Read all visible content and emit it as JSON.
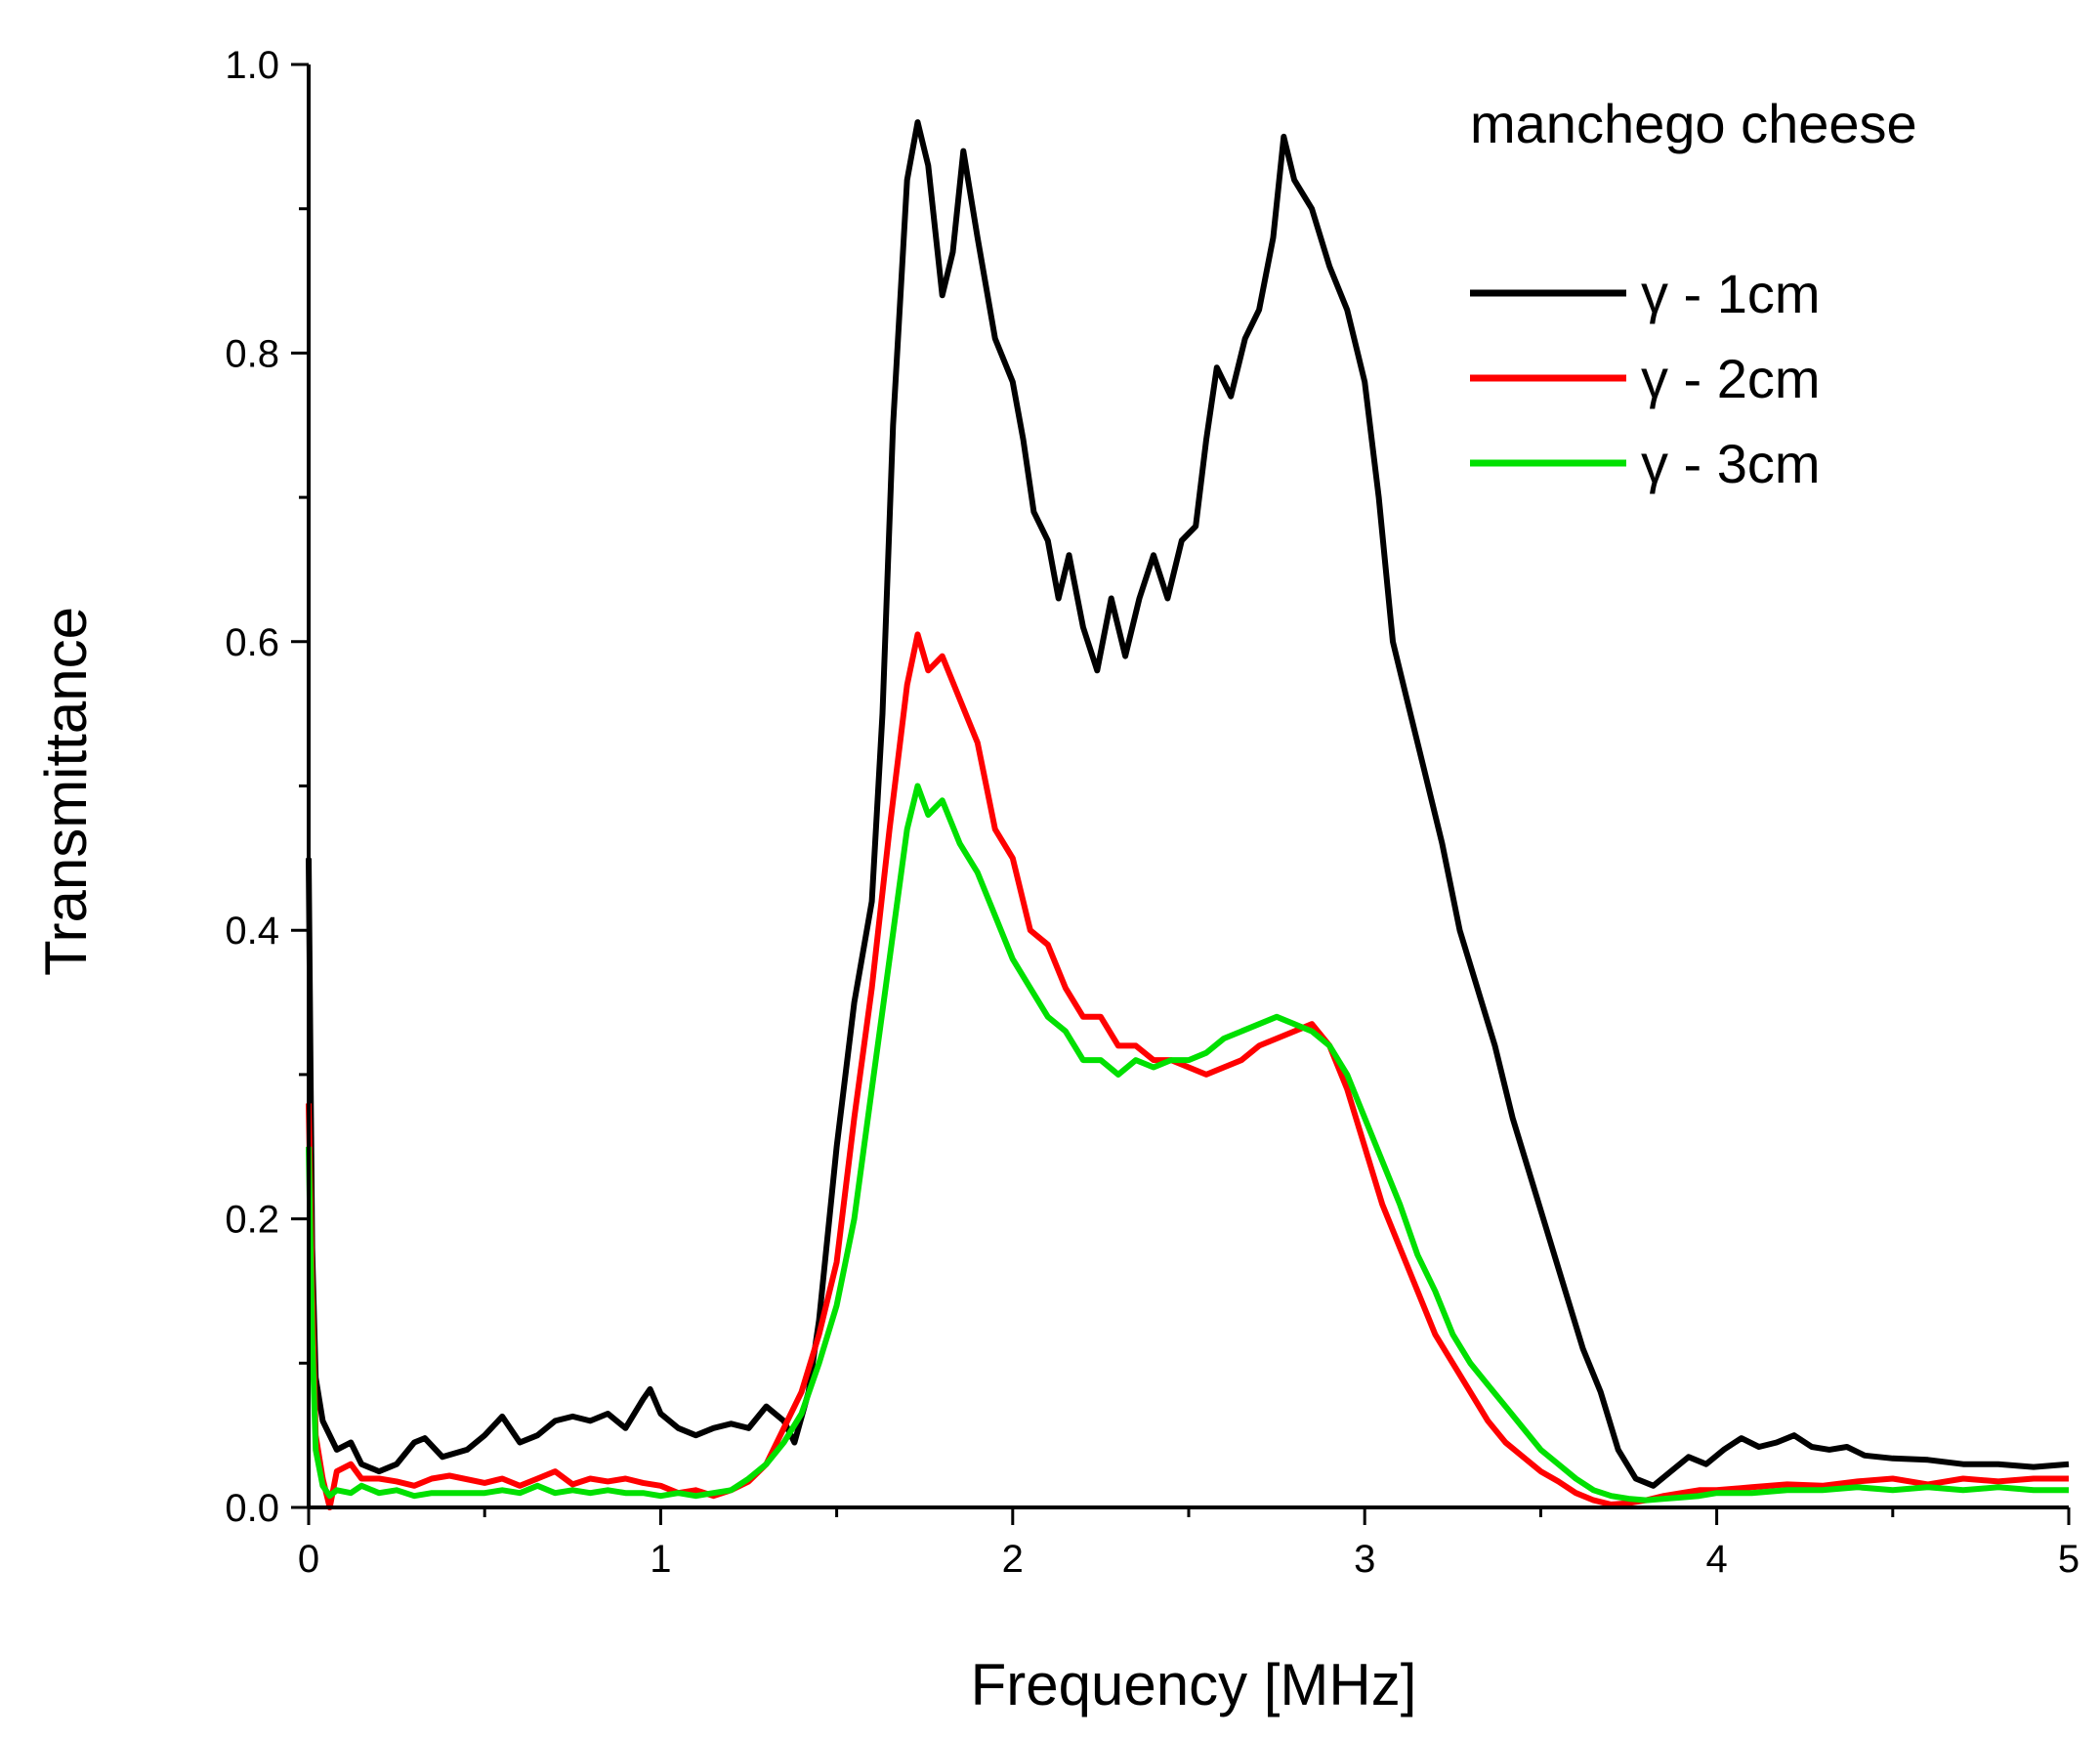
{
  "chart_data": {
    "type": "line",
    "title": "manchego cheese",
    "xlabel": "Frequency [MHz]",
    "ylabel": "Transmittance",
    "xlim": [
      0,
      5
    ],
    "ylim": [
      0,
      1.0
    ],
    "x_ticks": [
      "0",
      "1",
      "2",
      "3",
      "4",
      "5"
    ],
    "y_ticks": [
      "0.0",
      "0.2",
      "0.4",
      "0.6",
      "0.8",
      "1.0"
    ],
    "grid": false,
    "legend_position": "top-right",
    "series": [
      {
        "name": "γ - 1cm",
        "color": "#000000",
        "points": [
          [
            0.0,
            0.45
          ],
          [
            0.01,
            0.18
          ],
          [
            0.02,
            0.09
          ],
          [
            0.04,
            0.06
          ],
          [
            0.08,
            0.04
          ],
          [
            0.12,
            0.045
          ],
          [
            0.15,
            0.03
          ],
          [
            0.2,
            0.025
          ],
          [
            0.25,
            0.03
          ],
          [
            0.3,
            0.045
          ],
          [
            0.33,
            0.048
          ],
          [
            0.38,
            0.035
          ],
          [
            0.45,
            0.04
          ],
          [
            0.5,
            0.05
          ],
          [
            0.55,
            0.063
          ],
          [
            0.6,
            0.045
          ],
          [
            0.65,
            0.05
          ],
          [
            0.7,
            0.06
          ],
          [
            0.75,
            0.063
          ],
          [
            0.8,
            0.06
          ],
          [
            0.85,
            0.065
          ],
          [
            0.9,
            0.055
          ],
          [
            0.95,
            0.075
          ],
          [
            0.97,
            0.082
          ],
          [
            1.0,
            0.065
          ],
          [
            1.05,
            0.055
          ],
          [
            1.1,
            0.05
          ],
          [
            1.15,
            0.055
          ],
          [
            1.2,
            0.058
          ],
          [
            1.25,
            0.055
          ],
          [
            1.3,
            0.07
          ],
          [
            1.35,
            0.06
          ],
          [
            1.38,
            0.045
          ],
          [
            1.42,
            0.08
          ],
          [
            1.45,
            0.13
          ],
          [
            1.5,
            0.25
          ],
          [
            1.55,
            0.35
          ],
          [
            1.6,
            0.42
          ],
          [
            1.63,
            0.55
          ],
          [
            1.66,
            0.75
          ],
          [
            1.7,
            0.92
          ],
          [
            1.73,
            0.96
          ],
          [
            1.76,
            0.93
          ],
          [
            1.8,
            0.84
          ],
          [
            1.83,
            0.87
          ],
          [
            1.86,
            0.94
          ],
          [
            1.9,
            0.88
          ],
          [
            1.95,
            0.81
          ],
          [
            2.0,
            0.78
          ],
          [
            2.03,
            0.74
          ],
          [
            2.06,
            0.69
          ],
          [
            2.1,
            0.67
          ],
          [
            2.13,
            0.63
          ],
          [
            2.16,
            0.66
          ],
          [
            2.2,
            0.61
          ],
          [
            2.24,
            0.58
          ],
          [
            2.28,
            0.63
          ],
          [
            2.32,
            0.59
          ],
          [
            2.36,
            0.63
          ],
          [
            2.4,
            0.66
          ],
          [
            2.44,
            0.63
          ],
          [
            2.48,
            0.67
          ],
          [
            2.52,
            0.68
          ],
          [
            2.55,
            0.74
          ],
          [
            2.58,
            0.79
          ],
          [
            2.62,
            0.77
          ],
          [
            2.66,
            0.81
          ],
          [
            2.7,
            0.83
          ],
          [
            2.74,
            0.88
          ],
          [
            2.77,
            0.95
          ],
          [
            2.8,
            0.92
          ],
          [
            2.85,
            0.9
          ],
          [
            2.9,
            0.86
          ],
          [
            2.95,
            0.83
          ],
          [
            3.0,
            0.78
          ],
          [
            3.04,
            0.7
          ],
          [
            3.08,
            0.6
          ],
          [
            3.12,
            0.56
          ],
          [
            3.17,
            0.51
          ],
          [
            3.22,
            0.46
          ],
          [
            3.27,
            0.4
          ],
          [
            3.32,
            0.36
          ],
          [
            3.37,
            0.32
          ],
          [
            3.42,
            0.27
          ],
          [
            3.47,
            0.23
          ],
          [
            3.52,
            0.19
          ],
          [
            3.57,
            0.15
          ],
          [
            3.62,
            0.11
          ],
          [
            3.67,
            0.08
          ],
          [
            3.72,
            0.04
          ],
          [
            3.77,
            0.02
          ],
          [
            3.82,
            0.015
          ],
          [
            3.87,
            0.025
          ],
          [
            3.92,
            0.035
          ],
          [
            3.97,
            0.03
          ],
          [
            4.02,
            0.04
          ],
          [
            4.07,
            0.048
          ],
          [
            4.12,
            0.042
          ],
          [
            4.17,
            0.045
          ],
          [
            4.22,
            0.05
          ],
          [
            4.27,
            0.042
          ],
          [
            4.32,
            0.04
          ],
          [
            4.37,
            0.042
          ],
          [
            4.42,
            0.036
          ],
          [
            4.5,
            0.034
          ],
          [
            4.6,
            0.033
          ],
          [
            4.7,
            0.03
          ],
          [
            4.8,
            0.03
          ],
          [
            4.9,
            0.028
          ],
          [
            5.0,
            0.03
          ]
        ]
      },
      {
        "name": "γ - 2cm",
        "color": "#ff0000",
        "points": [
          [
            0.0,
            0.28
          ],
          [
            0.01,
            0.15
          ],
          [
            0.02,
            0.05
          ],
          [
            0.04,
            0.02
          ],
          [
            0.06,
            0.0
          ],
          [
            0.08,
            0.025
          ],
          [
            0.12,
            0.03
          ],
          [
            0.15,
            0.02
          ],
          [
            0.2,
            0.02
          ],
          [
            0.25,
            0.018
          ],
          [
            0.3,
            0.015
          ],
          [
            0.35,
            0.02
          ],
          [
            0.4,
            0.022
          ],
          [
            0.5,
            0.017
          ],
          [
            0.55,
            0.02
          ],
          [
            0.6,
            0.015
          ],
          [
            0.65,
            0.02
          ],
          [
            0.7,
            0.025
          ],
          [
            0.75,
            0.016
          ],
          [
            0.8,
            0.02
          ],
          [
            0.85,
            0.018
          ],
          [
            0.9,
            0.02
          ],
          [
            0.95,
            0.017
          ],
          [
            1.0,
            0.015
          ],
          [
            1.05,
            0.01
          ],
          [
            1.1,
            0.012
          ],
          [
            1.15,
            0.008
          ],
          [
            1.2,
            0.012
          ],
          [
            1.25,
            0.018
          ],
          [
            1.3,
            0.03
          ],
          [
            1.35,
            0.055
          ],
          [
            1.4,
            0.08
          ],
          [
            1.45,
            0.12
          ],
          [
            1.5,
            0.17
          ],
          [
            1.55,
            0.27
          ],
          [
            1.6,
            0.36
          ],
          [
            1.65,
            0.47
          ],
          [
            1.7,
            0.57
          ],
          [
            1.73,
            0.605
          ],
          [
            1.76,
            0.58
          ],
          [
            1.8,
            0.59
          ],
          [
            1.85,
            0.56
          ],
          [
            1.9,
            0.53
          ],
          [
            1.95,
            0.47
          ],
          [
            2.0,
            0.45
          ],
          [
            2.05,
            0.4
          ],
          [
            2.1,
            0.39
          ],
          [
            2.15,
            0.36
          ],
          [
            2.2,
            0.34
          ],
          [
            2.25,
            0.34
          ],
          [
            2.3,
            0.32
          ],
          [
            2.35,
            0.32
          ],
          [
            2.4,
            0.31
          ],
          [
            2.45,
            0.31
          ],
          [
            2.5,
            0.305
          ],
          [
            2.55,
            0.3
          ],
          [
            2.6,
            0.305
          ],
          [
            2.65,
            0.31
          ],
          [
            2.7,
            0.32
          ],
          [
            2.75,
            0.325
          ],
          [
            2.8,
            0.33
          ],
          [
            2.85,
            0.335
          ],
          [
            2.9,
            0.32
          ],
          [
            2.95,
            0.29
          ],
          [
            3.0,
            0.25
          ],
          [
            3.05,
            0.21
          ],
          [
            3.1,
            0.18
          ],
          [
            3.15,
            0.15
          ],
          [
            3.2,
            0.12
          ],
          [
            3.25,
            0.1
          ],
          [
            3.3,
            0.08
          ],
          [
            3.35,
            0.06
          ],
          [
            3.4,
            0.045
          ],
          [
            3.45,
            0.035
          ],
          [
            3.5,
            0.025
          ],
          [
            3.55,
            0.018
          ],
          [
            3.6,
            0.01
          ],
          [
            3.65,
            0.005
          ],
          [
            3.7,
            0.002
          ],
          [
            3.75,
            0.003
          ],
          [
            3.8,
            0.005
          ],
          [
            3.85,
            0.008
          ],
          [
            3.9,
            0.01
          ],
          [
            3.95,
            0.012
          ],
          [
            4.0,
            0.012
          ],
          [
            4.1,
            0.014
          ],
          [
            4.2,
            0.016
          ],
          [
            4.3,
            0.015
          ],
          [
            4.4,
            0.018
          ],
          [
            4.5,
            0.02
          ],
          [
            4.6,
            0.016
          ],
          [
            4.7,
            0.02
          ],
          [
            4.8,
            0.018
          ],
          [
            4.9,
            0.02
          ],
          [
            5.0,
            0.02
          ]
        ]
      },
      {
        "name": "γ - 3cm",
        "color": "#00e000",
        "points": [
          [
            0.0,
            0.25
          ],
          [
            0.01,
            0.12
          ],
          [
            0.02,
            0.04
          ],
          [
            0.04,
            0.015
          ],
          [
            0.06,
            0.008
          ],
          [
            0.08,
            0.012
          ],
          [
            0.12,
            0.01
          ],
          [
            0.15,
            0.015
          ],
          [
            0.2,
            0.01
          ],
          [
            0.25,
            0.012
          ],
          [
            0.3,
            0.008
          ],
          [
            0.35,
            0.01
          ],
          [
            0.4,
            0.01
          ],
          [
            0.5,
            0.01
          ],
          [
            0.55,
            0.012
          ],
          [
            0.6,
            0.01
          ],
          [
            0.65,
            0.015
          ],
          [
            0.7,
            0.01
          ],
          [
            0.75,
            0.012
          ],
          [
            0.8,
            0.01
          ],
          [
            0.85,
            0.012
          ],
          [
            0.9,
            0.01
          ],
          [
            0.95,
            0.01
          ],
          [
            1.0,
            0.008
          ],
          [
            1.05,
            0.01
          ],
          [
            1.1,
            0.008
          ],
          [
            1.15,
            0.01
          ],
          [
            1.2,
            0.012
          ],
          [
            1.25,
            0.02
          ],
          [
            1.3,
            0.03
          ],
          [
            1.35,
            0.045
          ],
          [
            1.4,
            0.065
          ],
          [
            1.45,
            0.1
          ],
          [
            1.5,
            0.14
          ],
          [
            1.55,
            0.2
          ],
          [
            1.6,
            0.29
          ],
          [
            1.65,
            0.38
          ],
          [
            1.7,
            0.47
          ],
          [
            1.73,
            0.5
          ],
          [
            1.76,
            0.48
          ],
          [
            1.8,
            0.49
          ],
          [
            1.85,
            0.46
          ],
          [
            1.9,
            0.44
          ],
          [
            1.95,
            0.41
          ],
          [
            2.0,
            0.38
          ],
          [
            2.05,
            0.36
          ],
          [
            2.1,
            0.34
          ],
          [
            2.15,
            0.33
          ],
          [
            2.2,
            0.31
          ],
          [
            2.25,
            0.31
          ],
          [
            2.3,
            0.3
          ],
          [
            2.35,
            0.31
          ],
          [
            2.4,
            0.305
          ],
          [
            2.45,
            0.31
          ],
          [
            2.5,
            0.31
          ],
          [
            2.55,
            0.315
          ],
          [
            2.6,
            0.325
          ],
          [
            2.65,
            0.33
          ],
          [
            2.7,
            0.335
          ],
          [
            2.75,
            0.34
          ],
          [
            2.8,
            0.335
          ],
          [
            2.85,
            0.33
          ],
          [
            2.9,
            0.32
          ],
          [
            2.95,
            0.3
          ],
          [
            3.0,
            0.27
          ],
          [
            3.05,
            0.24
          ],
          [
            3.1,
            0.21
          ],
          [
            3.15,
            0.175
          ],
          [
            3.2,
            0.15
          ],
          [
            3.25,
            0.12
          ],
          [
            3.3,
            0.1
          ],
          [
            3.35,
            0.085
          ],
          [
            3.4,
            0.07
          ],
          [
            3.45,
            0.055
          ],
          [
            3.5,
            0.04
          ],
          [
            3.55,
            0.03
          ],
          [
            3.6,
            0.02
          ],
          [
            3.65,
            0.012
          ],
          [
            3.7,
            0.008
          ],
          [
            3.75,
            0.006
          ],
          [
            3.8,
            0.005
          ],
          [
            3.85,
            0.006
          ],
          [
            3.9,
            0.007
          ],
          [
            3.95,
            0.008
          ],
          [
            4.0,
            0.01
          ],
          [
            4.1,
            0.01
          ],
          [
            4.2,
            0.012
          ],
          [
            4.3,
            0.012
          ],
          [
            4.4,
            0.014
          ],
          [
            4.5,
            0.012
          ],
          [
            4.6,
            0.014
          ],
          [
            4.7,
            0.012
          ],
          [
            4.8,
            0.014
          ],
          [
            4.9,
            0.012
          ],
          [
            5.0,
            0.012
          ]
        ]
      }
    ]
  }
}
